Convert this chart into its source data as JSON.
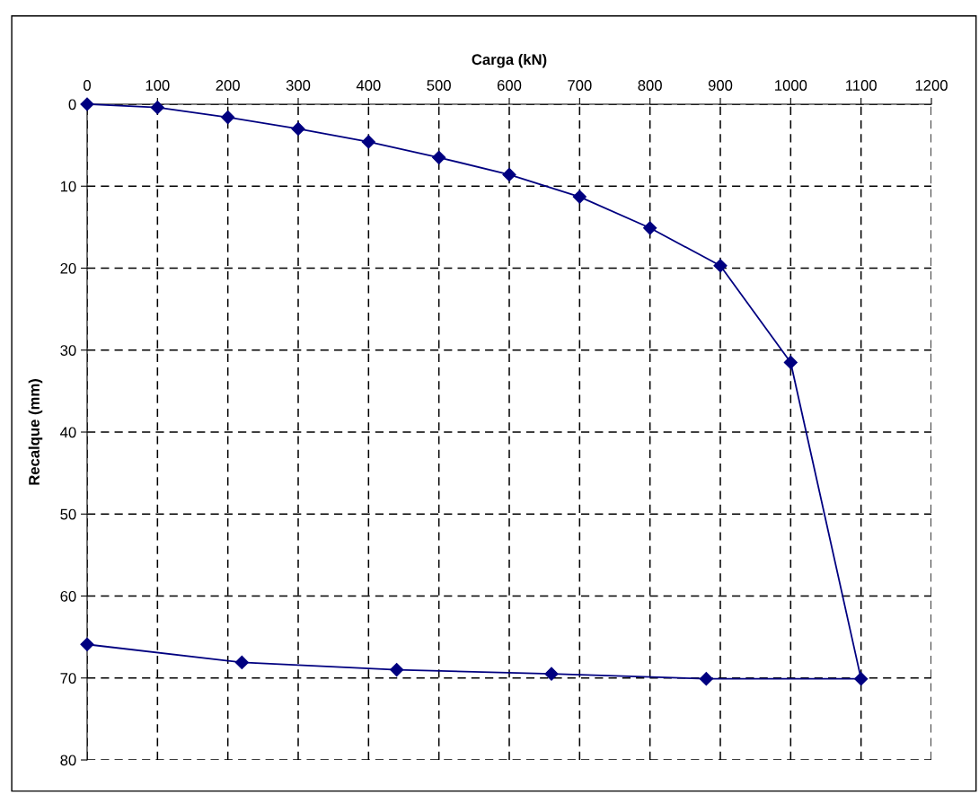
{
  "chart_data": {
    "type": "line",
    "xlabel": "Carga (kN)",
    "ylabel": "Recalque (mm)",
    "series": [
      {
        "color": "#000080",
        "x": [
          0,
          100,
          200,
          300,
          400,
          500,
          600,
          700,
          800,
          900,
          1000,
          1100,
          880,
          660,
          440,
          220,
          0
        ],
        "values": [
          0,
          0.4,
          1.6,
          3.0,
          4.6,
          6.5,
          8.6,
          11.3,
          15.1,
          19.7,
          31.5,
          70.1,
          70.1,
          69.5,
          69.0,
          68.1,
          65.9
        ]
      }
    ],
    "xlim": [
      0,
      1200
    ],
    "xticks": [
      0,
      100,
      200,
      300,
      400,
      500,
      600,
      700,
      800,
      900,
      1000,
      1100,
      1200
    ],
    "ylim": [
      80,
      0
    ],
    "yticks": [
      0,
      10,
      20,
      30,
      40,
      50,
      60,
      70,
      80
    ],
    "grid": true,
    "marker": "diamond",
    "line_style": "solid"
  }
}
